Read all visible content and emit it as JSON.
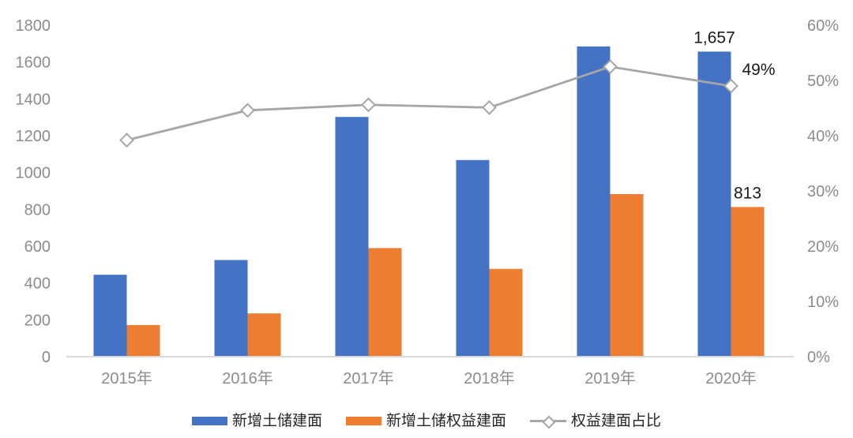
{
  "chart_data": {
    "type": "combo-bar-line",
    "title": "",
    "categories": [
      "2015年",
      "2016年",
      "2017年",
      "2018年",
      "2019年",
      "2020年"
    ],
    "series": [
      {
        "name": "新增土储建面",
        "chart": "bar",
        "axis": "left",
        "color": "#4472C4",
        "values": [
          445,
          525,
          1302,
          1068,
          1685,
          1657
        ]
      },
      {
        "name": "新增土储权益建面",
        "chart": "bar",
        "axis": "left",
        "color": "#ED7D31",
        "values": [
          172,
          235,
          590,
          477,
          883,
          813
        ]
      },
      {
        "name": "权益建面占比",
        "chart": "line",
        "axis": "right",
        "color": "#A6A6A6",
        "marker": "diamond",
        "values": [
          39.2,
          44.6,
          45.6,
          45.1,
          52.5,
          49
        ]
      }
    ],
    "left_axis": {
      "min": 0,
      "max": 1800,
      "step": 200,
      "ticks": [
        "0",
        "200",
        "400",
        "600",
        "800",
        "1000",
        "1200",
        "1400",
        "1600",
        "1800"
      ]
    },
    "right_axis": {
      "min": 0,
      "max": 60,
      "step": 10,
      "ticks": [
        "0%",
        "10%",
        "20%",
        "30%",
        "40%",
        "50%",
        "60%"
      ]
    },
    "data_labels": [
      {
        "text": "1,657",
        "series": 0,
        "index": 5
      },
      {
        "text": "813",
        "series": 1,
        "index": 5
      },
      {
        "text": "49%",
        "series": 2,
        "index": 5
      }
    ],
    "legend": [
      {
        "label": "新增土储建面",
        "swatch": "rect",
        "color": "#4472C4"
      },
      {
        "label": "新增土储权益建面",
        "swatch": "rect",
        "color": "#ED7D31"
      },
      {
        "label": "权益建面占比",
        "swatch": "line-diamond",
        "color": "#A6A6A6"
      }
    ],
    "grid": false,
    "legend_position": "bottom",
    "styles": {
      "axis_text_color": "#8C8C8C",
      "axis_line_color": "#D9D9D9",
      "data_label_color": "#1a1a1a",
      "legend_text_color": "#262626",
      "background": "#FFFFFF"
    }
  }
}
